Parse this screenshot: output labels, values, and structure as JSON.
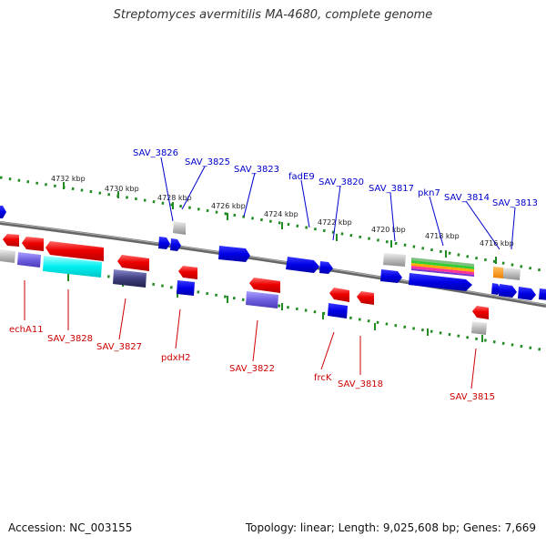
{
  "title": "Streptomyces avermitilis MA-4680, complete genome",
  "footer": {
    "accession": "Accession: NC_003155",
    "summary": "Topology: linear; Length: 9,025,608 bp; Genes: 7,669"
  },
  "colors": {
    "forward_label": "#0000cc",
    "reverse_label": "#cc0000",
    "ruler": "#228b22",
    "backbone": "#777777"
  },
  "ticks": [
    "4732 kbp",
    "4730 kbp",
    "4728 kbp",
    "4726 kbp",
    "4724 kbp",
    "4722 kbp",
    "4720 kbp",
    "4718 kbp",
    "4716 kbp"
  ],
  "forward_labels": [
    "SAV_3826",
    "SAV_3825",
    "SAV_3823",
    "fadE9",
    "SAV_3820",
    "SAV_3817",
    "pkn7",
    "SAV_3814",
    "SAV_3813"
  ],
  "reverse_labels": [
    "echA11",
    "SAV_3828",
    "SAV_3827",
    "pdxH2",
    "SAV_3822",
    "frcK",
    "SAV_3818",
    "SAV_3815"
  ]
}
